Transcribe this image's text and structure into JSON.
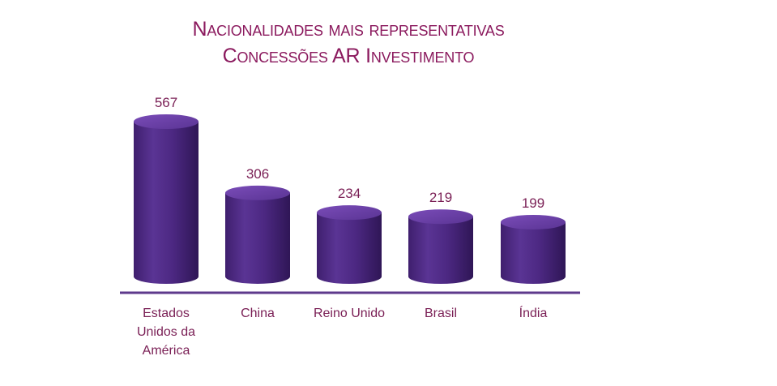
{
  "title_line1": "Nacionalidades mais representativas",
  "title_line2": "Concessões AR Investimento",
  "colors": {
    "title": "#8b1a5e",
    "labels": "#7a1f55",
    "bar_body": "#4e2a84",
    "bar_top": "#6b3fa6",
    "baseline": "#5e3a8c"
  },
  "chart_data": {
    "type": "bar",
    "style": "3d-cylinder",
    "title": "Nacionalidades mais representativas / Concessões AR Investimento",
    "categories": [
      "Estados Unidos da América",
      "China",
      "Reino Unido",
      "Brasil",
      "Índia"
    ],
    "category_label_lines": [
      [
        "Estados",
        "Unidos da",
        "América"
      ],
      [
        "China"
      ],
      [
        "Reino Unido"
      ],
      [
        "Brasil"
      ],
      [
        "Índia"
      ]
    ],
    "values": [
      567,
      306,
      234,
      219,
      199
    ],
    "data_labels": [
      "567",
      "306",
      "234",
      "219",
      "199"
    ],
    "ylim": [
      0,
      567
    ],
    "grid": false,
    "legend": "none",
    "xlabel": "",
    "ylabel": ""
  }
}
